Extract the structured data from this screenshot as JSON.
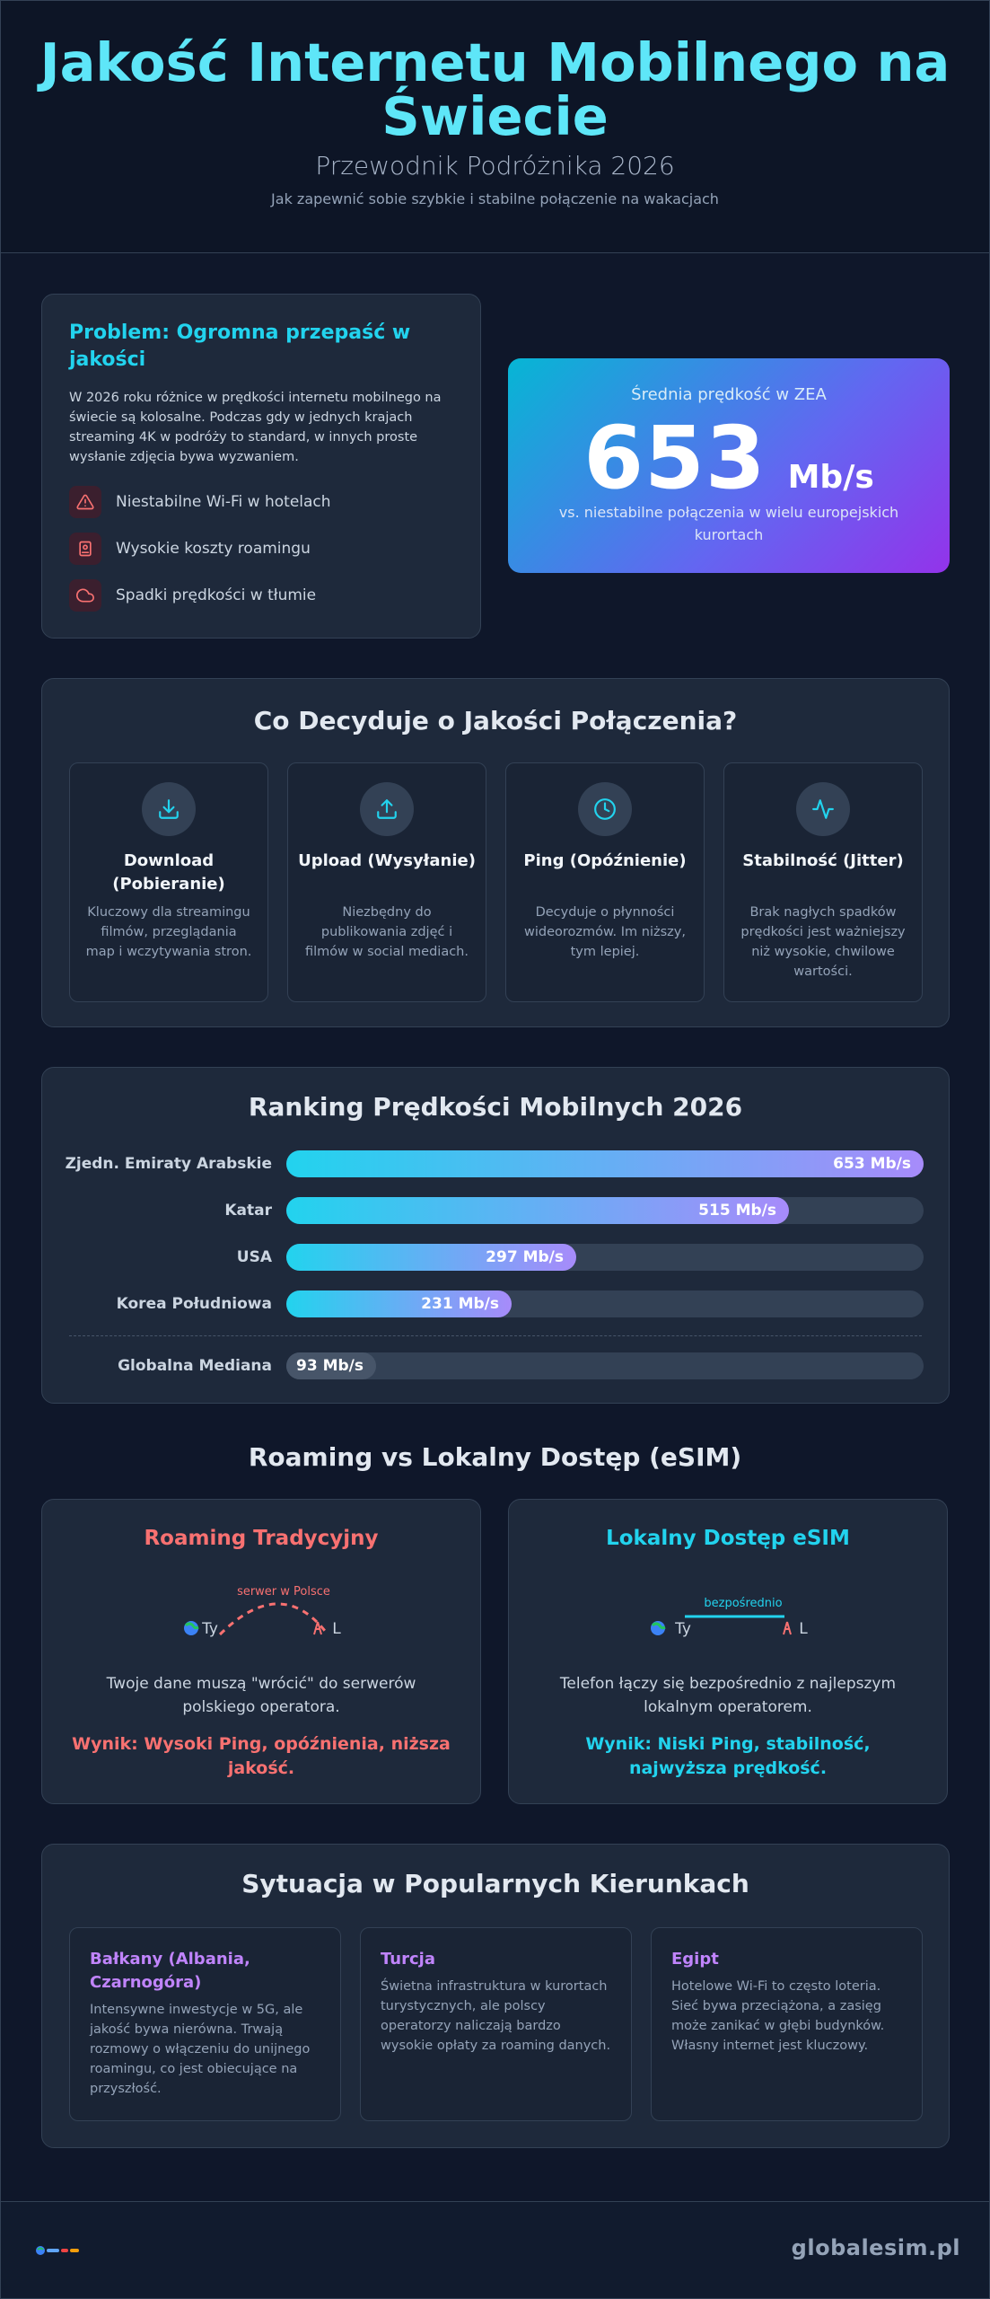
{
  "header": {
    "title": "Jakość Internetu Mobilnego na Świecie",
    "subtitle": "Przewodnik Podróżnika 2026",
    "tagline": "Jak zapewnić sobie szybkie i stabilne połączenie na wakacjach"
  },
  "problem": {
    "title": "Problem: Ogromna przepaść w jakości",
    "body": "W 2026 roku różnice w prędkości internetu mobilnego na świecie są kolosalne. Podczas gdy w jednych krajach streaming 4K w podróży to standard, w innych proste wysłanie zdjęcia bywa wyzwaniem.",
    "items": [
      {
        "icon": "warning-triangle-icon",
        "label": "Niestabilne Wi-Fi w hotelach"
      },
      {
        "icon": "wallet-icon",
        "label": "Wysokie koszty roamingu"
      },
      {
        "icon": "cloud-icon",
        "label": "Spadki prędkości w tłumie"
      }
    ]
  },
  "stat": {
    "label": "Średnia prędkość w ZEA",
    "value": "653",
    "unit": "Mb/s",
    "note": "vs. niestabilne połączenia w wielu europejskich kurortach"
  },
  "factors": {
    "title": "Co Decyduje o Jakości Połączenia?",
    "items": [
      {
        "icon": "download-icon",
        "title": "Download (Pobieranie)",
        "desc": "Kluczowy dla streamingu filmów, przeglądania map i wczytywania stron."
      },
      {
        "icon": "upload-icon",
        "title": "Upload (Wysyłanie)",
        "desc": "Niezbędny do publikowania zdjęć i filmów w social mediach."
      },
      {
        "icon": "clock-icon",
        "title": "Ping (Opóźnienie)",
        "desc": "Decyduje o płynności wideorozmów. Im niższy, tym lepiej."
      },
      {
        "icon": "pulse-icon",
        "title": "Stabilność (Jitter)",
        "desc": "Brak nagłych spadków prędkości jest ważniejszy niż wysokie, chwilowe wartości."
      }
    ]
  },
  "ranking": {
    "title": "Ranking Prędkości Mobilnych 2026",
    "rows": [
      {
        "label": "Zjedn. Emiraty Arabskie",
        "value": 653,
        "display": "653 Mb/s"
      },
      {
        "label": "Katar",
        "value": 515,
        "display": "515 Mb/s"
      },
      {
        "label": "USA",
        "value": 297,
        "display": "297 Mb/s"
      },
      {
        "label": "Korea Południowa",
        "value": 231,
        "display": "231 Mb/s"
      },
      {
        "label": "Globalna Mediana",
        "value": 93,
        "display": "93 Mb/s",
        "median": true
      }
    ],
    "max": 653
  },
  "roaming": {
    "title": "Roaming vs Lokalny Dostęp (eSIM)",
    "traditional": {
      "title": "Roaming Tradycyjny",
      "color": "#f87171",
      "diagram_label": "serwer w Polsce",
      "you": "Ty",
      "local": "L",
      "text": "Twoje dane muszą \"wrócić\" do serwerów polskiego operatora.",
      "result": "Wynik: Wysoki Ping, opóźnienia, niższa jakość."
    },
    "esim": {
      "title": "Lokalny Dostęp eSIM",
      "color": "#22d3ee",
      "diagram_label": "bezpośrednio",
      "you": "Ty",
      "local": "L",
      "text": "Telefon łączy się bezpośrednio z najlepszym lokalnym operatorem.",
      "result": "Wynik: Niski Ping, stabilność, najwyższa prędkość."
    }
  },
  "destinations": {
    "title": "Sytuacja w Popularnych Kierunkach",
    "items": [
      {
        "name": "Bałkany (Albania, Czarnogóra)",
        "desc": "Intensywne inwestycje w 5G, ale jakość bywa nierówna. Trwają rozmowy o włączeniu do unijnego roamingu, co jest obiecujące na przyszłość."
      },
      {
        "name": "Turcja",
        "desc": "Świetna infrastruktura w kurortach turystycznych, ale polscy operatorzy naliczają bardzo wysokie opłaty za roaming danych."
      },
      {
        "name": "Egipt",
        "desc": "Hotelowe Wi-Fi to często loteria. Sieć bywa przeciążona, a zasięg może zanikać w głębi budynków. Własny internet jest kluczowy."
      }
    ]
  },
  "footer": {
    "brand": "globalesim.pl"
  }
}
